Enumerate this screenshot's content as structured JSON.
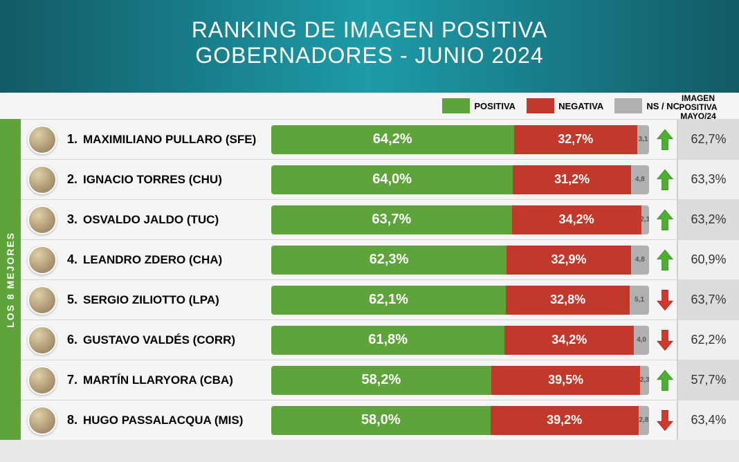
{
  "title": {
    "line1": "RANKING DE IMAGEN POSITIVA",
    "line2": "GOBERNADORES - JUNIO 2024"
  },
  "header_bg_gradient": [
    "#125a66",
    "#1e9ba8",
    "#125a66"
  ],
  "legend": {
    "positiva": "POSITIVA",
    "negativa": "NEGATIVA",
    "nsnc": "NS / NC",
    "right_header_l1": "IMAGEN",
    "right_header_l2": "POSITIVA",
    "right_header_l3": "MAYO/24"
  },
  "colors": {
    "positive": "#5ea43a",
    "negative": "#c0392b",
    "nsnc": "#b0b0b0",
    "trend_up": "#4caf2f",
    "trend_down": "#d0392b",
    "side_label_bg": "#5ea43a"
  },
  "side_label": "LOS 8 MEJORES",
  "rows": [
    {
      "rank": "1.",
      "name": "MAXIMILIANO PULLARO (SFE)",
      "pos": 64.2,
      "neg": 32.7,
      "ns": 3.1,
      "pos_label": "64,2%",
      "neg_label": "32,7%",
      "ns_label": "3,1",
      "trend": "up",
      "prev": "62,7%",
      "prev_bg": "grey"
    },
    {
      "rank": "2.",
      "name": "IGNACIO TORRES (CHU)",
      "pos": 64.0,
      "neg": 31.2,
      "ns": 4.8,
      "pos_label": "64,0%",
      "neg_label": "31,2%",
      "ns_label": "4,8",
      "trend": "up",
      "prev": "63,3%",
      "prev_bg": "light"
    },
    {
      "rank": "3.",
      "name": "OSVALDO JALDO (TUC)",
      "pos": 63.7,
      "neg": 34.2,
      "ns": 2.1,
      "pos_label": "63,7%",
      "neg_label": "34,2%",
      "ns_label": "2,1",
      "trend": "up",
      "prev": "63,2%",
      "prev_bg": "grey"
    },
    {
      "rank": "4.",
      "name": "LEANDRO ZDERO (CHA)",
      "pos": 62.3,
      "neg": 32.9,
      "ns": 4.8,
      "pos_label": "62,3%",
      "neg_label": "32,9%",
      "ns_label": "4,8",
      "trend": "up",
      "prev": "60,9%",
      "prev_bg": "light"
    },
    {
      "rank": "5.",
      "name": "SERGIO ZILIOTTO (LPA)",
      "pos": 62.1,
      "neg": 32.8,
      "ns": 5.1,
      "pos_label": "62,1%",
      "neg_label": "32,8%",
      "ns_label": "5,1",
      "trend": "down",
      "prev": "63,7%",
      "prev_bg": "grey"
    },
    {
      "rank": "6.",
      "name": "GUSTAVO VALDÉS (CORR)",
      "pos": 61.8,
      "neg": 34.2,
      "ns": 4.0,
      "pos_label": "61,8%",
      "neg_label": "34,2%",
      "ns_label": "4,0",
      "trend": "down",
      "prev": "62,2%",
      "prev_bg": "light"
    },
    {
      "rank": "7.",
      "name": "MARTÍN LLARYORA (CBA)",
      "pos": 58.2,
      "neg": 39.5,
      "ns": 2.3,
      "pos_label": "58,2%",
      "neg_label": "39,5%",
      "ns_label": "2,3",
      "trend": "up",
      "prev": "57,7%",
      "prev_bg": "grey"
    },
    {
      "rank": "8.",
      "name": "HUGO PASSALACQUA (MIS)",
      "pos": 58.0,
      "neg": 39.2,
      "ns": 2.8,
      "pos_label": "58,0%",
      "neg_label": "39,2%",
      "ns_label": "2,8",
      "trend": "down",
      "prev": "63,4%",
      "prev_bg": "light"
    }
  ]
}
